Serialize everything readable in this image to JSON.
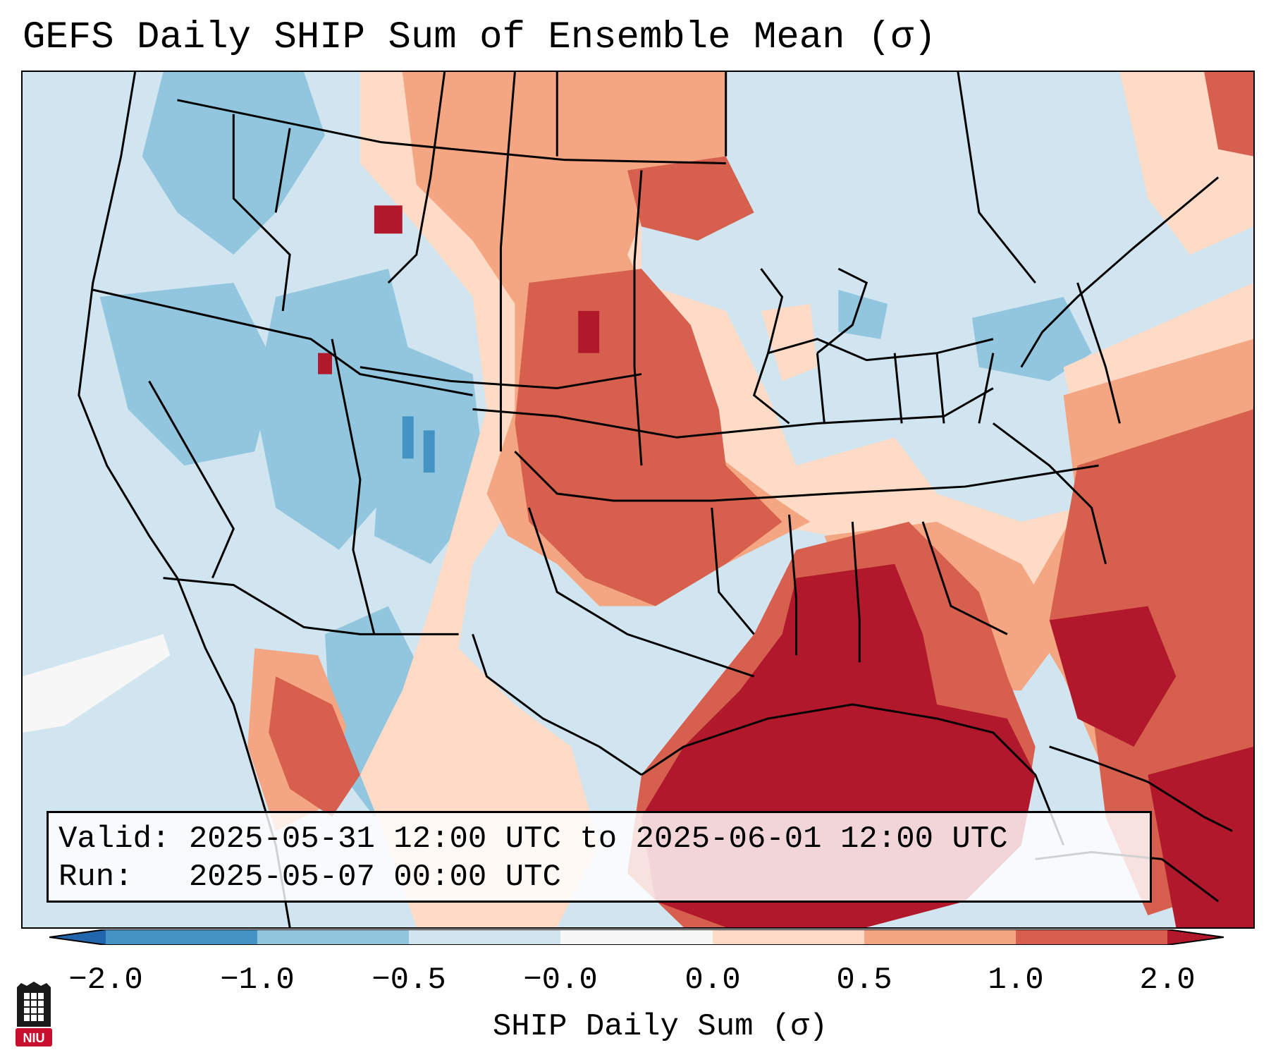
{
  "title": "GEFS Daily SHIP Sum of Ensemble Mean (σ)",
  "info": {
    "valid_line": "Valid: 2025-05-31 12:00 UTC to 2025-06-01 12:00 UTC",
    "run_line": "Run:   2025-05-07 00:00 UTC"
  },
  "colorbar": {
    "label": "SHIP Daily Sum (σ)",
    "ticks": [
      "−2.0",
      "−1.0",
      "−0.5",
      "−0.0",
      "0.0",
      "0.5",
      "1.0",
      "2.0"
    ],
    "colors": {
      "under": "#2166ac",
      "bins": [
        "#4393c3",
        "#92c5de",
        "#d1e5f0",
        "#f7f7f7",
        "#fddbc7",
        "#f4a582",
        "#d6604d"
      ],
      "over": "#b2182b"
    }
  },
  "logo": {
    "text": "NIU",
    "color": "#c8102e"
  }
}
